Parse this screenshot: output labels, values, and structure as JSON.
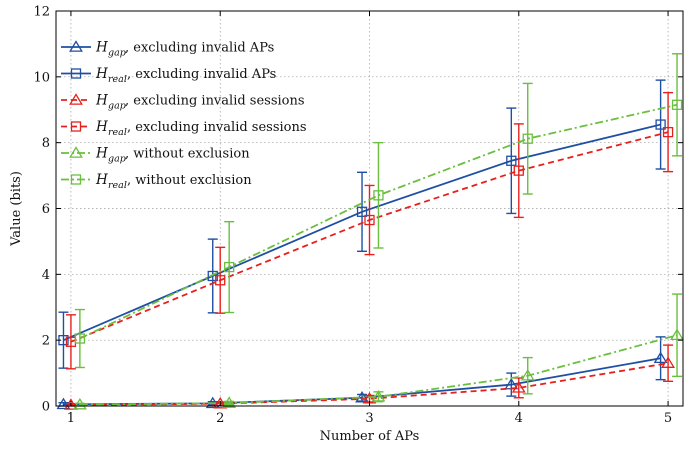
{
  "chart_data": {
    "type": "line",
    "xlabel": "Number of APs",
    "ylabel": "Value (bits)",
    "x": [
      1,
      2,
      3,
      4,
      5
    ],
    "xlim": [
      0.9,
      5.1
    ],
    "ylim": [
      0,
      12
    ],
    "yticks": [
      0,
      2,
      4,
      6,
      8,
      10,
      12
    ],
    "grid": true,
    "legend_position": "top-left",
    "series": [
      {
        "sym": "H",
        "sub": "gap",
        "name": ", excluding invalid APs",
        "color": "#1f4fa3",
        "dash": "solid",
        "marker": "triangle",
        "offset": -0.05,
        "values": [
          0.05,
          0.08,
          0.25,
          0.65,
          1.45
        ],
        "err": [
          0.05,
          0.05,
          0.1,
          0.35,
          0.65
        ]
      },
      {
        "sym": "H",
        "sub": "real",
        "name": ", excluding invalid APs",
        "color": "#1f4fa3",
        "dash": "solid",
        "marker": "square",
        "offset": -0.05,
        "values": [
          2.0,
          3.95,
          5.9,
          7.45,
          8.55
        ],
        "err": [
          0.85,
          1.12,
          1.2,
          1.6,
          1.35
        ]
      },
      {
        "sym": "H",
        "sub": "gap",
        "name": ", excluding invalid sessions",
        "color": "#e8201c",
        "dash": "dashed",
        "marker": "triangle",
        "offset": 0.0,
        "values": [
          0.03,
          0.07,
          0.22,
          0.55,
          1.3
        ],
        "err": [
          0.04,
          0.05,
          0.1,
          0.3,
          0.55
        ]
      },
      {
        "sym": "H",
        "sub": "real",
        "name": ", excluding invalid sessions",
        "color": "#e8201c",
        "dash": "dashed",
        "marker": "square",
        "offset": 0.0,
        "values": [
          1.95,
          3.82,
          5.65,
          7.15,
          8.32
        ],
        "err": [
          0.82,
          1.0,
          1.05,
          1.42,
          1.2
        ]
      },
      {
        "sym": "H",
        "sub": "gap",
        "name": ", without exclusion",
        "color": "#6abf3f",
        "dash": "dashdot",
        "marker": "triangle",
        "offset": 0.06,
        "values": [
          0.04,
          0.09,
          0.28,
          0.92,
          2.15
        ],
        "err": [
          0.04,
          0.05,
          0.15,
          0.55,
          1.25
        ]
      },
      {
        "sym": "H",
        "sub": "real",
        "name": ", without exclusion",
        "color": "#6abf3f",
        "dash": "dashdot",
        "marker": "square",
        "offset": 0.06,
        "values": [
          2.05,
          4.22,
          6.4,
          8.12,
          9.15
        ],
        "err": [
          0.88,
          1.38,
          1.6,
          1.68,
          1.55
        ]
      }
    ]
  }
}
